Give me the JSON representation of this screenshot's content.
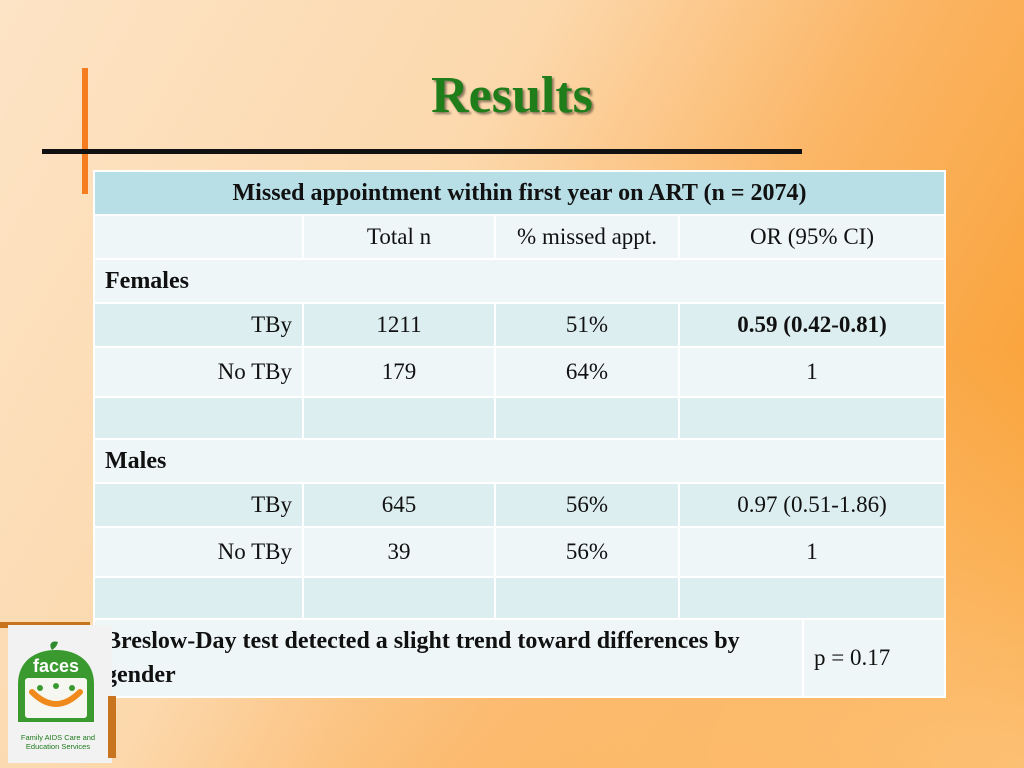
{
  "slide": {
    "title": "Results"
  },
  "table": {
    "header": "Missed appointment within first year on ART (n = 2074)",
    "columns": [
      "",
      "Total n",
      "% missed appt.",
      "OR (95% CI)"
    ],
    "females": {
      "label": "Females",
      "rows": [
        {
          "group": "TBy",
          "total": "1211",
          "missed": "51%",
          "or": "0.59 (0.42-0.81)"
        },
        {
          "group": "No TBy",
          "total": "179",
          "missed": "64%",
          "or": "1"
        }
      ]
    },
    "males": {
      "label": "Males",
      "rows": [
        {
          "group": "TBy",
          "total": "645",
          "missed": "56%",
          "or": "0.97 (0.51-1.86)"
        },
        {
          "group": "No TBy",
          "total": "39",
          "missed": "56%",
          "or": "1"
        }
      ]
    },
    "footer": {
      "note": "Breslow-Day test detected a slight trend toward differences by gender",
      "pvalue": "p = 0.17"
    }
  },
  "logo": {
    "wordmark": "faces",
    "caption": "Family AIDS Care and Education Services"
  },
  "colors": {
    "title_green": "#1f7d1a",
    "accent_orange": "#f57d20",
    "table_header": "#b8dee6",
    "table_row_dark": "#ddeef1",
    "table_row_light": "#eef6f8"
  }
}
